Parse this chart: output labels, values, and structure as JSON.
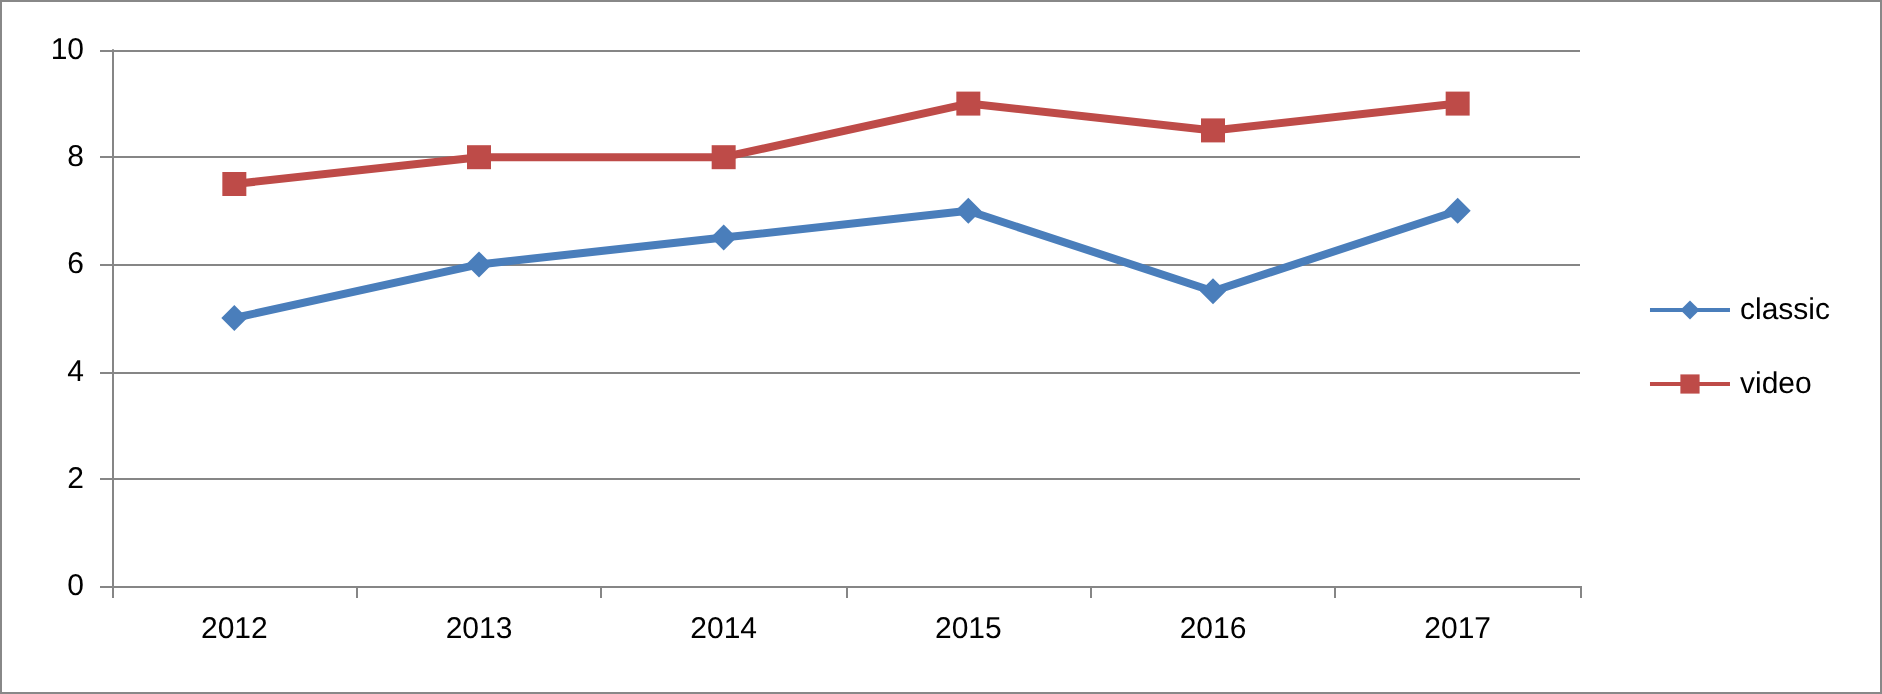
{
  "chart_data": {
    "type": "line",
    "categories": [
      "2012",
      "2013",
      "2014",
      "2015",
      "2016",
      "2017"
    ],
    "series": [
      {
        "name": "classic",
        "color": "#4a7ebb",
        "marker": "diamond",
        "values": [
          5,
          6,
          6.5,
          7,
          5.5,
          7
        ]
      },
      {
        "name": "video",
        "color": "#be4b48",
        "marker": "square",
        "values": [
          7.5,
          8,
          8,
          9,
          8.5,
          9
        ]
      }
    ],
    "ylim": [
      0,
      10
    ],
    "yticks": [
      0,
      2,
      4,
      6,
      8,
      10
    ],
    "grid": "y",
    "legend": "right"
  }
}
